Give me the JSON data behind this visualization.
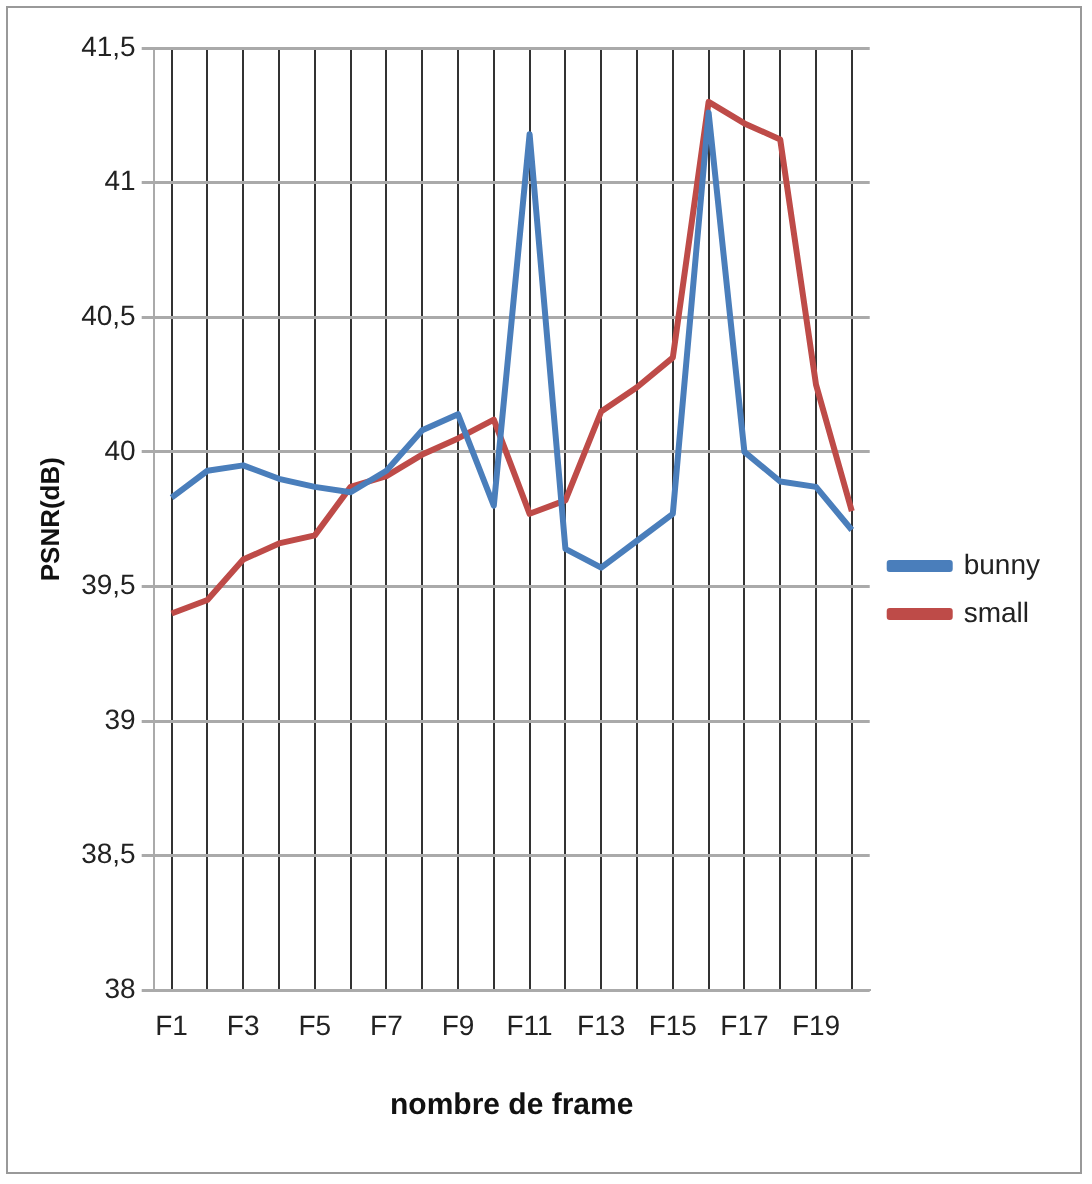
{
  "chart_data": {
    "type": "line",
    "xlabel": "nombre de frame",
    "ylabel": "PSNR(dB)",
    "categories": [
      "F1",
      null,
      "F3",
      null,
      "F5",
      null,
      "F7",
      null,
      "F9",
      null,
      "F11",
      null,
      "F13",
      null,
      "F15",
      null,
      "F17",
      null,
      "F19",
      null
    ],
    "series": [
      {
        "name": "bunny",
        "color": "#4a7ebb",
        "values": [
          39.83,
          39.93,
          39.95,
          39.9,
          39.87,
          39.85,
          39.93,
          40.08,
          40.14,
          39.8,
          41.18,
          39.64,
          39.57,
          39.67,
          39.77,
          41.26,
          40.0,
          39.89,
          39.87,
          39.71
        ]
      },
      {
        "name": "small",
        "color": "#be4b48",
        "values": [
          39.4,
          39.45,
          39.6,
          39.66,
          39.69,
          39.87,
          39.91,
          39.99,
          40.05,
          40.12,
          39.77,
          39.82,
          40.15,
          40.24,
          40.35,
          41.3,
          41.22,
          41.16,
          40.25,
          39.78
        ]
      }
    ],
    "ylim": [
      38,
      41.5
    ],
    "yticks": [
      38,
      {
        "value": 38.5,
        "label": "38,5"
      },
      39,
      {
        "value": 39.5,
        "label": "39,5"
      },
      40,
      {
        "value": 40.5,
        "label": "40,5"
      },
      41,
      {
        "value": 41.5,
        "label": "41,5"
      }
    ],
    "grid": true,
    "legend": "right",
    "marker": "none",
    "line_style": "solid"
  }
}
